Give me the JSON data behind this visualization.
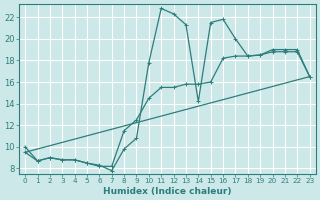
{
  "xlabel": "Humidex (Indice chaleur)",
  "xlim": [
    -0.5,
    23.5
  ],
  "ylim": [
    7.5,
    23.2
  ],
  "xticks": [
    0,
    1,
    2,
    3,
    4,
    5,
    6,
    7,
    8,
    9,
    10,
    11,
    12,
    13,
    14,
    15,
    16,
    17,
    18,
    19,
    20,
    21,
    22,
    23
  ],
  "yticks": [
    8,
    10,
    12,
    14,
    16,
    18,
    20,
    22
  ],
  "background_color": "#cde8e8",
  "grid_color": "#ffffff",
  "line_color": "#2e7d7d",
  "line1_x": [
    0,
    1,
    2,
    3,
    4,
    5,
    6,
    7,
    8,
    9,
    10,
    11,
    12,
    13,
    14,
    15,
    16,
    17,
    18,
    19,
    20,
    21,
    22,
    23
  ],
  "line1_y": [
    10.0,
    8.7,
    9.0,
    8.8,
    8.8,
    8.5,
    8.3,
    7.8,
    9.8,
    10.8,
    17.8,
    22.8,
    22.3,
    21.3,
    14.2,
    21.5,
    21.8,
    20.0,
    18.4,
    18.5,
    19.0,
    19.0,
    19.0,
    16.5
  ],
  "line2_x": [
    0,
    1,
    2,
    3,
    4,
    5,
    6,
    7,
    8,
    9,
    10,
    11,
    12,
    13,
    14,
    15,
    16,
    17,
    18,
    19,
    20,
    21,
    22,
    23
  ],
  "line2_y": [
    9.5,
    8.7,
    9.0,
    8.8,
    8.8,
    8.5,
    8.2,
    8.2,
    11.5,
    12.5,
    14.5,
    15.5,
    15.5,
    15.8,
    15.8,
    16.0,
    18.2,
    18.4,
    18.4,
    18.5,
    18.8,
    18.8,
    18.8,
    16.5
  ],
  "line3_x": [
    0,
    23
  ],
  "line3_y": [
    9.5,
    16.5
  ]
}
